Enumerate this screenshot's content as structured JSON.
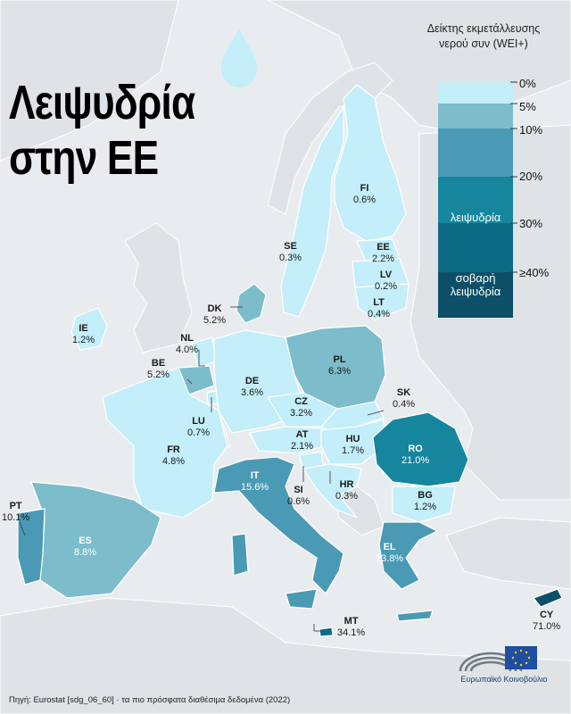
{
  "title": {
    "line1": "Λειψυδρία",
    "line2": "στην ΕΕ"
  },
  "legend": {
    "title_line1": "Δείκτης εκμετάλλευσης",
    "title_line2": "νερού συν (WEI+)",
    "ticks": [
      "0%",
      "5%",
      "10%",
      "20%",
      "30%",
      "≥40%"
    ],
    "band_label_scarcity": "λειψυδρία",
    "band_label_severe_line1": "σοβαρή",
    "band_label_severe_line2": "λειψυδρία",
    "colors": [
      "#c3eefa",
      "#7cbccb",
      "#4a9ab5",
      "#15869d",
      "#0b6b85",
      "#0d4f66"
    ]
  },
  "countries": [
    {
      "code": "FI",
      "value": "0.6%"
    },
    {
      "code": "SE",
      "value": "0.3%"
    },
    {
      "code": "EE",
      "value": "2.2%"
    },
    {
      "code": "LV",
      "value": "0.2%"
    },
    {
      "code": "LT",
      "value": "0.4%"
    },
    {
      "code": "DK",
      "value": "5.2%"
    },
    {
      "code": "IE",
      "value": "1.2%"
    },
    {
      "code": "NL",
      "value": "4.0%"
    },
    {
      "code": "BE",
      "value": "5.2%"
    },
    {
      "code": "DE",
      "value": "3.6%"
    },
    {
      "code": "PL",
      "value": "6.3%"
    },
    {
      "code": "LU",
      "value": "0.7%"
    },
    {
      "code": "CZ",
      "value": "3.2%"
    },
    {
      "code": "SK",
      "value": "0.4%"
    },
    {
      "code": "FR",
      "value": "4.8%"
    },
    {
      "code": "AT",
      "value": "2.1%"
    },
    {
      "code": "HU",
      "value": "1.7%"
    },
    {
      "code": "RO",
      "value": "21.0%"
    },
    {
      "code": "IT",
      "value": "15.6%"
    },
    {
      "code": "SI",
      "value": "0.6%"
    },
    {
      "code": "HR",
      "value": "0.3%"
    },
    {
      "code": "BG",
      "value": "1.2%"
    },
    {
      "code": "PT",
      "value": "10.1%"
    },
    {
      "code": "ES",
      "value": "8.8%"
    },
    {
      "code": "EL",
      "value": "13.8%"
    },
    {
      "code": "MT",
      "value": "34.1%"
    },
    {
      "code": "CY",
      "value": "71.0%"
    }
  ],
  "source": "Πηγή: Eurostat [sdg_06_60] · τα πιο πρόσφατα διαθέσιμα δεδομένα (2022)",
  "logo_text": "Ευρωπαϊκό Κοινοβούλιο",
  "icons": [
    "water-drop-icon",
    "european-parliament-logo"
  ]
}
